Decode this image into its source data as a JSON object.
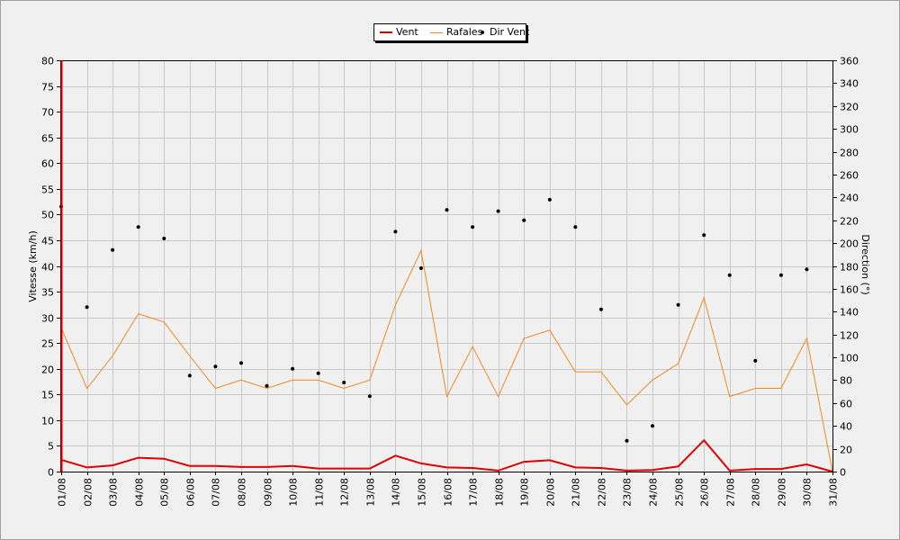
{
  "legend": {
    "wind_label": "Vent",
    "gust_label": "Rafales",
    "dir_label": "Dir Vent"
  },
  "colors": {
    "wind": "#e00000",
    "gust": "#f08a1c",
    "dir": "#000000",
    "grid": "#c8c8c8",
    "plot_bg": "#f0f0f0"
  },
  "chart_data": {
    "type": "line",
    "categories": [
      "01/08",
      "02/08",
      "03/08",
      "04/08",
      "05/08",
      "06/08",
      "07/08",
      "08/08",
      "09/08",
      "10/08",
      "11/08",
      "12/08",
      "13/08",
      "14/08",
      "15/08",
      "16/08",
      "17/08",
      "18/08",
      "19/08",
      "20/08",
      "21/08",
      "22/08",
      "23/08",
      "24/08",
      "25/08",
      "26/08",
      "27/08",
      "28/08",
      "29/08",
      "30/08",
      "31/08"
    ],
    "ylabel": "Vitesse (km/h)",
    "ylim": [
      0,
      80
    ],
    "yticks": [
      0,
      5,
      10,
      15,
      20,
      25,
      30,
      35,
      40,
      45,
      50,
      55,
      60,
      65,
      70,
      75,
      80
    ],
    "y2label": "Direction (°)",
    "y2lim": [
      0,
      360
    ],
    "y2ticks": [
      0,
      20,
      40,
      60,
      80,
      100,
      120,
      140,
      160,
      180,
      200,
      220,
      240,
      260,
      280,
      300,
      320,
      340,
      360
    ],
    "grid": true,
    "legend_position": "top-center",
    "series": [
      {
        "name": "Vent",
        "axis": "left",
        "style": "line",
        "values": [
          2.3,
          0.8,
          1.2,
          2.7,
          2.5,
          1.1,
          1.1,
          0.9,
          0.9,
          1.1,
          0.6,
          0.6,
          0.6,
          3.1,
          1.6,
          0.8,
          0.7,
          0.2,
          1.9,
          2.2,
          0.8,
          0.7,
          0.2,
          0.3,
          1.0,
          6.1,
          0.2,
          0.5,
          0.5,
          1.4,
          0.0
        ]
      },
      {
        "name": "Rafales",
        "axis": "left",
        "style": "line",
        "values": [
          28,
          16.2,
          22.5,
          30.7,
          29.1,
          22.5,
          16.2,
          17.8,
          16.2,
          17.8,
          17.8,
          16.2,
          17.8,
          32.4,
          43.0,
          14.6,
          24.3,
          14.6,
          25.9,
          27.5,
          19.4,
          19.4,
          13.0,
          17.8,
          21.0,
          33.8,
          14.6,
          16.2,
          16.2,
          25.9,
          0
        ]
      },
      {
        "name": "Dir Vent",
        "axis": "right",
        "style": "points",
        "values": [
          232,
          144,
          194,
          214,
          204,
          84,
          92,
          95,
          75,
          90,
          86,
          78,
          66,
          210,
          178,
          229,
          214,
          228,
          220,
          238,
          214,
          142,
          27,
          40,
          146,
          207,
          172,
          97,
          172,
          177,
          null
        ]
      }
    ]
  }
}
